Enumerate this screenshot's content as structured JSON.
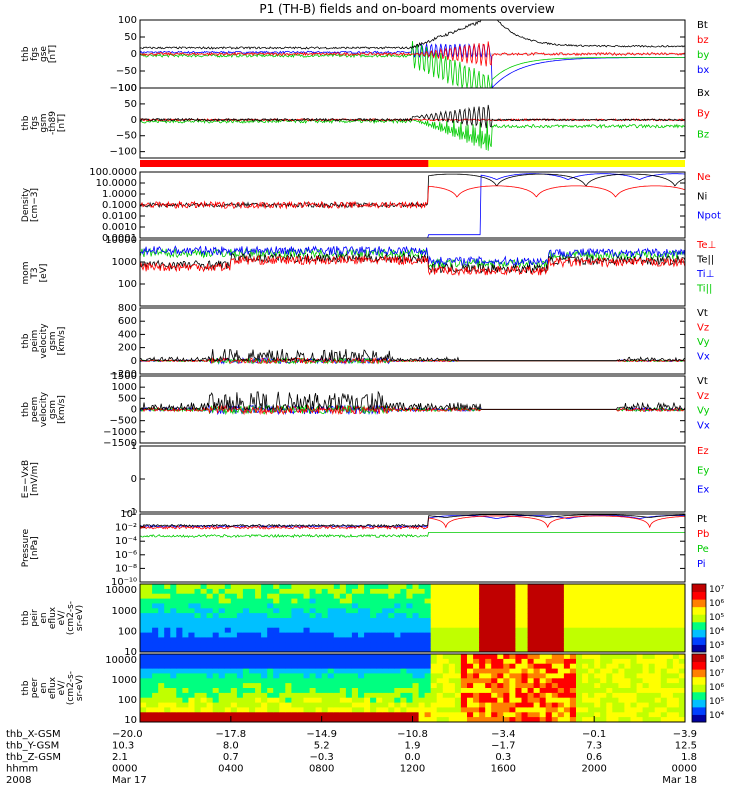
{
  "title": "P1 (TH-B) fields and on-board moments overview",
  "chart_data": [
    {
      "type": "line",
      "panel": "fgs_gse",
      "ylabel_lines": [
        "thb",
        "fgs",
        "gse",
        "[nT]"
      ],
      "ylim": [
        -100,
        100
      ],
      "yticks": [
        {
          "v": 100,
          "label": "100"
        },
        {
          "v": 50,
          "label": "50"
        },
        {
          "v": 0,
          "label": "0"
        },
        {
          "v": -50,
          "label": "−50"
        },
        {
          "v": -100,
          "label": "−100"
        }
      ],
      "legend": [
        {
          "name": "Bt",
          "color": "#000000"
        },
        {
          "name": "bz",
          "color": "#ff0000"
        },
        {
          "name": "by",
          "color": "#00cc00"
        },
        {
          "name": "bx",
          "color": "#0000ff"
        }
      ]
    },
    {
      "type": "line",
      "panel": "fgs_gsm",
      "ylabel_lines": [
        "thb",
        "fgs",
        "gsm",
        "-th89",
        "[nT]"
      ],
      "ylim": [
        -120,
        100
      ],
      "yticks": [
        {
          "v": 100,
          "label": "100"
        },
        {
          "v": 50,
          "label": "50"
        },
        {
          "v": 0,
          "label": "0"
        },
        {
          "v": -50,
          "label": "−50"
        },
        {
          "v": -100,
          "label": "−100"
        }
      ],
      "legend": [
        {
          "name": "Bx",
          "color": "#000000"
        },
        {
          "name": "By",
          "color": "#ff0000"
        },
        {
          "name": "Bz",
          "color": "#00cc00"
        }
      ]
    },
    {
      "type": "line",
      "panel": "density",
      "log": true,
      "ylabel_lines": [
        "Density",
        "[cm−3]"
      ],
      "ylim": [
        0.0001,
        100
      ],
      "yticks": [
        {
          "v": 100,
          "label": "100.0000"
        },
        {
          "v": 10,
          "label": "10.0000"
        },
        {
          "v": 1,
          "label": "1.0000"
        },
        {
          "v": 0.1,
          "label": "0.1000"
        },
        {
          "v": 0.01,
          "label": "0.0100"
        },
        {
          "v": 0.001,
          "label": "0.0010"
        },
        {
          "v": 0.0001,
          "label": "0.0001"
        }
      ],
      "legend": [
        {
          "name": "Ne",
          "color": "#ff0000"
        },
        {
          "name": "Ni",
          "color": "#000000"
        },
        {
          "name": "Npot",
          "color": "#0000ff"
        }
      ]
    },
    {
      "type": "line",
      "panel": "temperature",
      "log": true,
      "ylabel_lines": [
        "mom",
        "T3",
        "[eV]"
      ],
      "ylim": [
        10,
        10000
      ],
      "yticks": [
        {
          "v": 10000,
          "label": "10000"
        },
        {
          "v": 1000,
          "label": "1000"
        },
        {
          "v": 100,
          "label": "100"
        }
      ],
      "legend": [
        {
          "name": "Te⊥",
          "color": "#ff0000"
        },
        {
          "name": "Te||",
          "color": "#000000"
        },
        {
          "name": "Ti⊥",
          "color": "#0000ff"
        },
        {
          "name": "Ti||",
          "color": "#00cc00"
        }
      ]
    },
    {
      "type": "line",
      "panel": "peim_velocity",
      "ylabel_lines": [
        "thb",
        "peim",
        "velocity",
        "gsm",
        "[km/s]"
      ],
      "ylim": [
        -200,
        800
      ],
      "yticks": [
        {
          "v": 800,
          "label": "800"
        },
        {
          "v": 600,
          "label": "600"
        },
        {
          "v": 400,
          "label": "400"
        },
        {
          "v": 200,
          "label": "200"
        },
        {
          "v": 0,
          "label": "0"
        },
        {
          "v": -200,
          "label": "−200"
        }
      ],
      "legend": [
        {
          "name": "Vt",
          "color": "#000000"
        },
        {
          "name": "Vz",
          "color": "#ff0000"
        },
        {
          "name": "Vy",
          "color": "#00cc00"
        },
        {
          "name": "Vx",
          "color": "#0000ff"
        }
      ]
    },
    {
      "type": "line",
      "panel": "peem_velocity",
      "ylabel_lines": [
        "thb",
        "peem",
        "velocity",
        "gsm",
        "[km/s]"
      ],
      "ylim": [
        -1500,
        1500
      ],
      "yticks": [
        {
          "v": 1500,
          "label": "1500"
        },
        {
          "v": 1000,
          "label": "1000"
        },
        {
          "v": 500,
          "label": "500"
        },
        {
          "v": 0,
          "label": "0"
        },
        {
          "v": -500,
          "label": "−500"
        },
        {
          "v": -1000,
          "label": "−1000"
        },
        {
          "v": -1500,
          "label": "−1500"
        }
      ],
      "legend": [
        {
          "name": "Vt",
          "color": "#000000"
        },
        {
          "name": "Vz",
          "color": "#ff0000"
        },
        {
          "name": "Vy",
          "color": "#00cc00"
        },
        {
          "name": "Vx",
          "color": "#0000ff"
        }
      ]
    },
    {
      "type": "line",
      "panel": "efield",
      "ylabel_lines": [
        "E=−VxB",
        "[mV/m]"
      ],
      "ylim": [
        -1,
        1
      ],
      "yticks": [
        {
          "v": 1,
          "label": "1"
        },
        {
          "v": 0,
          "label": "0"
        },
        {
          "v": -1,
          "label": "−1"
        }
      ],
      "legend": [
        {
          "name": "Ez",
          "color": "#ff0000"
        },
        {
          "name": "Ey",
          "color": "#00cc00"
        },
        {
          "name": "Ex",
          "color": "#0000ff"
        }
      ]
    },
    {
      "type": "line",
      "panel": "pressure",
      "log": true,
      "ylabel_lines": [
        "Pressure",
        "[nPa]"
      ],
      "ylim": [
        1e-10,
        1
      ],
      "yticks": [
        {
          "v": 1,
          "label": "10⁰"
        },
        {
          "v": 0.01,
          "label": "10⁻²"
        },
        {
          "v": 0.0001,
          "label": "10⁻⁴"
        },
        {
          "v": 1e-06,
          "label": "10⁻⁶"
        },
        {
          "v": 1e-08,
          "label": "10⁻⁸"
        },
        {
          "v": 1e-10,
          "label": "10⁻¹⁰"
        }
      ],
      "legend": [
        {
          "name": "Pt",
          "color": "#000000"
        },
        {
          "name": "Pb",
          "color": "#ff0000"
        },
        {
          "name": "Pe",
          "color": "#00cc00"
        },
        {
          "name": "Pi",
          "color": "#0000ff"
        }
      ]
    },
    {
      "type": "heatmap",
      "panel": "peir_spec",
      "log": true,
      "ylabel_lines": [
        "thb",
        "peir",
        "en",
        "eflux",
        "eV/",
        "(cm2-s-",
        "sr-eV)"
      ],
      "ylim": [
        10,
        20000
      ],
      "yticks": [
        {
          "v": 10000,
          "label": "10000"
        },
        {
          "v": 1000,
          "label": "1000"
        },
        {
          "v": 100,
          "label": "100"
        },
        {
          "v": 10,
          "label": "10"
        }
      ],
      "colorbar": [
        "10⁷",
        "10⁶",
        "10⁵",
        "10⁴",
        "10³"
      ]
    },
    {
      "type": "heatmap",
      "panel": "peer_spec",
      "log": true,
      "ylabel_lines": [
        "thb",
        "peer",
        "en",
        "eflux",
        "eV/",
        "(cm2-s-",
        "sr-eV)"
      ],
      "ylim": [
        8,
        20000
      ],
      "yticks": [
        {
          "v": 10000,
          "label": "10000"
        },
        {
          "v": 1000,
          "label": "1000"
        },
        {
          "v": 100,
          "label": "100"
        },
        {
          "v": 10,
          "label": "10"
        }
      ],
      "colorbar": [
        "10⁸",
        "10⁷",
        "10⁶",
        "10⁵",
        "10⁴"
      ]
    }
  ],
  "state_bar": {
    "segments": [
      {
        "from": 0,
        "to": 12.7,
        "color": "#ff0000"
      },
      {
        "from": 12.7,
        "to": 24,
        "color": "#ffff00"
      }
    ]
  },
  "time_axis": {
    "range_hours": [
      0,
      24
    ],
    "row_labels": [
      "thb_X-GSM",
      "thb_Y-GSM",
      "thb_Z-GSM",
      "hhmm",
      "2008"
    ],
    "ticks": [
      {
        "h": 0,
        "vals": [
          "−20.0",
          "10.3",
          "2.1",
          "0000",
          "Mar 17"
        ]
      },
      {
        "h": 4,
        "vals": [
          "−17.8",
          "8.0",
          "0.7",
          "0400",
          ""
        ]
      },
      {
        "h": 8,
        "vals": [
          "−14.9",
          "5.2",
          "−0.3",
          "0800",
          ""
        ]
      },
      {
        "h": 12,
        "vals": [
          "−10.8",
          "1.9",
          "0.0",
          "1200",
          ""
        ]
      },
      {
        "h": 16,
        "vals": [
          "−3.4",
          "−1.7",
          "0.3",
          "1600",
          ""
        ]
      },
      {
        "h": 20,
        "vals": [
          "−0.1",
          "7.3",
          "0.6",
          "2000",
          ""
        ]
      },
      {
        "h": 24,
        "vals": [
          "−3.9",
          "12.5",
          "1.8",
          "0000",
          "Mar 18"
        ]
      }
    ]
  }
}
